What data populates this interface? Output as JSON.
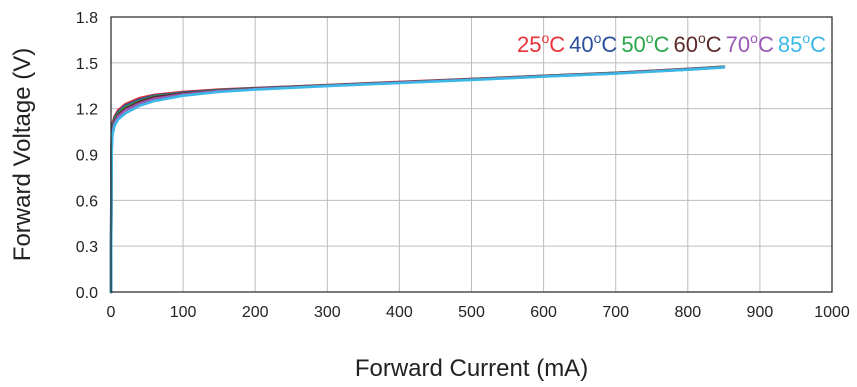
{
  "chart_data": {
    "type": "line",
    "title": "",
    "xlabel": "Forward Current (mA)",
    "ylabel": "Forward Voltage (V)",
    "xlim": [
      0,
      1000
    ],
    "ylim": [
      0,
      1.8
    ],
    "xticks": [
      0,
      100,
      200,
      300,
      400,
      500,
      600,
      700,
      800,
      900,
      1000
    ],
    "yticks": [
      0.0,
      0.3,
      0.6,
      0.9,
      1.2,
      1.5,
      1.8
    ],
    "ytick_labels": [
      "0.0",
      "0.3",
      "0.6",
      "0.9",
      "1.2",
      "1.5",
      "1.8"
    ],
    "grid": true,
    "legend_position": "top-right",
    "series": [
      {
        "name": "25°C",
        "legend_main": "25",
        "legend_sup": "o",
        "legend_suffix": "C",
        "color": "#e8333a",
        "x": [
          0,
          0.5,
          1,
          2,
          5,
          10,
          20,
          40,
          60,
          100,
          150,
          200,
          300,
          400,
          500,
          600,
          700,
          800,
          850
        ],
        "y": [
          0,
          0.7,
          1.02,
          1.1,
          1.15,
          1.19,
          1.23,
          1.27,
          1.29,
          1.31,
          1.325,
          1.335,
          1.355,
          1.375,
          1.395,
          1.415,
          1.435,
          1.46,
          1.475
        ]
      },
      {
        "name": "40°C",
        "legend_main": "40",
        "legend_sup": "o",
        "legend_suffix": "C",
        "color": "#2b4f9c",
        "x": [
          0,
          0.5,
          1,
          2,
          5,
          10,
          20,
          40,
          60,
          100,
          150,
          200,
          300,
          400,
          500,
          600,
          700,
          800,
          850
        ],
        "y": [
          0,
          0.68,
          1.0,
          1.08,
          1.14,
          1.18,
          1.22,
          1.26,
          1.285,
          1.305,
          1.322,
          1.333,
          1.353,
          1.373,
          1.393,
          1.414,
          1.434,
          1.459,
          1.474
        ]
      },
      {
        "name": "50°C",
        "legend_main": "50",
        "legend_sup": "o",
        "legend_suffix": "C",
        "color": "#2aa74a",
        "x": [
          0,
          0.5,
          1,
          2,
          5,
          10,
          20,
          40,
          60,
          100,
          150,
          200,
          300,
          400,
          500,
          600,
          700,
          800,
          850
        ],
        "y": [
          0,
          0.66,
          0.98,
          1.07,
          1.13,
          1.17,
          1.21,
          1.25,
          1.28,
          1.3,
          1.32,
          1.331,
          1.352,
          1.372,
          1.392,
          1.413,
          1.433,
          1.458,
          1.473
        ]
      },
      {
        "name": "60°C",
        "legend_main": "60",
        "legend_sup": "o",
        "legend_suffix": "C",
        "color": "#5c2a28",
        "x": [
          0,
          0.5,
          1,
          2,
          5,
          10,
          20,
          40,
          60,
          100,
          150,
          200,
          300,
          400,
          500,
          600,
          700,
          800,
          850
        ],
        "y": [
          0,
          0.64,
          0.96,
          1.06,
          1.12,
          1.16,
          1.2,
          1.245,
          1.275,
          1.298,
          1.318,
          1.33,
          1.351,
          1.371,
          1.391,
          1.412,
          1.432,
          1.457,
          1.472
        ]
      },
      {
        "name": "70°C",
        "legend_main": "70",
        "legend_sup": "o",
        "legend_suffix": "C",
        "color": "#9b59b6",
        "x": [
          0,
          0.5,
          1,
          2,
          5,
          10,
          20,
          40,
          60,
          100,
          150,
          200,
          300,
          400,
          500,
          600,
          700,
          800,
          850
        ],
        "y": [
          0,
          0.62,
          0.94,
          1.05,
          1.11,
          1.15,
          1.19,
          1.235,
          1.265,
          1.293,
          1.315,
          1.328,
          1.35,
          1.37,
          1.39,
          1.411,
          1.431,
          1.456,
          1.471
        ]
      },
      {
        "name": "85°C",
        "legend_main": "85",
        "legend_sup": "o",
        "legend_suffix": "C",
        "color": "#3cb8e6",
        "x": [
          0,
          0.5,
          1,
          2,
          5,
          10,
          20,
          40,
          60,
          100,
          150,
          200,
          300,
          400,
          500,
          600,
          700,
          800,
          850
        ],
        "y": [
          0,
          0.6,
          0.92,
          1.03,
          1.09,
          1.13,
          1.17,
          1.22,
          1.25,
          1.285,
          1.31,
          1.325,
          1.348,
          1.368,
          1.388,
          1.41,
          1.43,
          1.455,
          1.47
        ]
      }
    ]
  }
}
